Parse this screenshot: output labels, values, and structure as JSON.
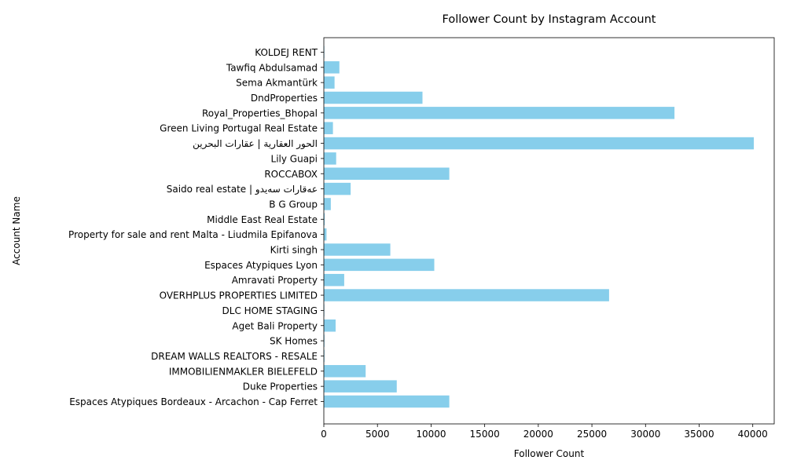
{
  "chart_data": {
    "type": "bar",
    "orientation": "horizontal",
    "title": "Follower Count by Instagram Account",
    "xlabel": "Follower Count",
    "ylabel": "Account Name",
    "xlim": [
      0,
      42000
    ],
    "xticks": [
      0,
      5000,
      10000,
      15000,
      20000,
      25000,
      30000,
      35000,
      40000
    ],
    "bar_color": "#87ceeb",
    "grid": false,
    "categories": [
      "Espaces Atypiques Bordeaux - Arcachon - Cap Ferret",
      "Duke Properties",
      "IMMOBILIENMAKLER BIELEFELD",
      "DREAM WALLS REALTORS - RESALE",
      "SK Homes",
      "Aget Bali Property",
      "DLC HOME STAGING",
      "OVERHPLUS PROPERTIES LIMITED",
      "Amravati Property",
      "Espaces Atypiques Lyon",
      "Kirti singh",
      "Property for sale and rent Malta - Liudmila Epifanova",
      "Middle East Real Estate",
      "B G Group",
      "Saido real estate | عەقارات سەیدو",
      "ROCCABOX",
      "Lily Guapi",
      "الحور العقارية | عقارات البحرين",
      "Green Living Portugal Real Estate",
      "Royal_Properties_Bhopal",
      "DndProperties",
      "Sema Akmantürk",
      "Tawfiq Abdulsamad",
      "KOLDEJ RENT"
    ],
    "values": [
      11700,
      6800,
      3900,
      60,
      60,
      1100,
      50,
      26600,
      1900,
      10300,
      6200,
      250,
      80,
      650,
      2500,
      11700,
      1150,
      40100,
      850,
      32700,
      9200,
      1000,
      1450,
      50
    ]
  }
}
